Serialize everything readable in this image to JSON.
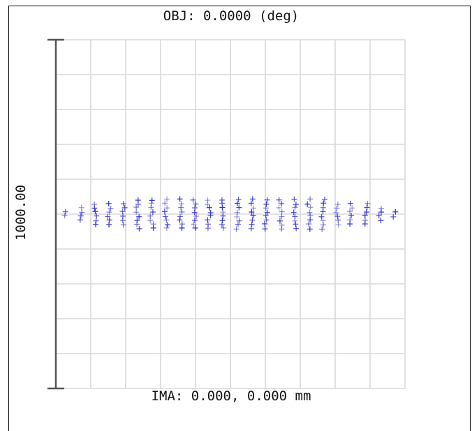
{
  "chart_data": {
    "type": "scatter",
    "title": "OBJ: 0.0000 (deg)",
    "xlabel": "IMA: 0.000, 0.000 mm",
    "ylabel": "1000.00",
    "xlim": [
      -500,
      500
    ],
    "ylim": [
      -500,
      500
    ],
    "grid": true,
    "grid_divisions": 10,
    "marker": "plus",
    "colors": {
      "points": "#2f2fd6",
      "grid": "#d9d9d9",
      "scale_bar": "#555555"
    },
    "ellipse": {
      "center": [
        0,
        0
      ],
      "semi_axis_x": 490,
      "semi_axis_y": 45,
      "cols": 24,
      "rows": 8
    }
  }
}
